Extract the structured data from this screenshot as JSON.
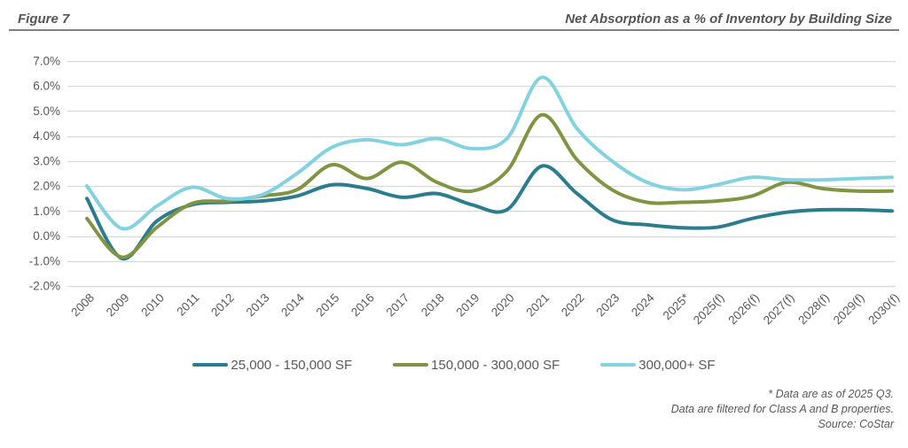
{
  "header": {
    "figure_label": "Figure 7",
    "title": "Net Absorption as a % of Inventory by Building Size"
  },
  "chart_data": {
    "type": "line",
    "title": "Net Absorption as a % of Inventory by Building Size",
    "categories": [
      "2008",
      "2009",
      "2010",
      "2011",
      "2012",
      "2013",
      "2014",
      "2015",
      "2016",
      "2017",
      "2018",
      "2019",
      "2020",
      "2021",
      "2022",
      "2023",
      "2024",
      "2025*",
      "2025(f)",
      "2026(f)",
      "2027(f)",
      "2028(f)",
      "2029(f)",
      "2030(f)"
    ],
    "series": [
      {
        "name": "25,000 - 150,000 SF",
        "color": "#2b7d8e",
        "values": [
          1.5,
          -0.9,
          0.6,
          1.25,
          1.35,
          1.4,
          1.6,
          2.05,
          1.9,
          1.55,
          1.7,
          1.25,
          1.05,
          2.8,
          1.7,
          0.65,
          0.45,
          0.33,
          0.35,
          0.7,
          0.95,
          1.05,
          1.05,
          1.0
        ]
      },
      {
        "name": "150,000 - 300,000 SF",
        "color": "#7f9544",
        "values": [
          0.7,
          -0.85,
          0.35,
          1.3,
          1.4,
          1.6,
          1.85,
          2.85,
          2.3,
          2.95,
          2.15,
          1.8,
          2.6,
          4.85,
          3.05,
          1.85,
          1.35,
          1.35,
          1.4,
          1.6,
          2.15,
          1.9,
          1.8,
          1.8
        ]
      },
      {
        "name": "300,000+ SF",
        "color": "#82d2e0",
        "values": [
          2.0,
          0.3,
          1.2,
          1.95,
          1.5,
          1.65,
          2.5,
          3.55,
          3.85,
          3.65,
          3.9,
          3.5,
          3.9,
          6.35,
          4.3,
          3.0,
          2.15,
          1.85,
          2.05,
          2.35,
          2.25,
          2.25,
          2.3,
          2.35
        ]
      }
    ],
    "y_ticks": [
      7,
      6,
      5,
      4,
      3,
      2,
      1,
      0,
      -1,
      -2
    ],
    "ylim": [
      -2,
      7
    ],
    "y_tick_suffix": "%",
    "grid": "horizontal",
    "legend_position": "bottom",
    "xlabel": "",
    "ylabel": ""
  },
  "footnotes": [
    "* Data are as of 2025 Q3.",
    "Data are filtered for Class A and B properties.",
    "Source: CoStar"
  ],
  "colors": {
    "text": "#595959",
    "gridline": "#d9d9d9",
    "rule": "#808080"
  }
}
